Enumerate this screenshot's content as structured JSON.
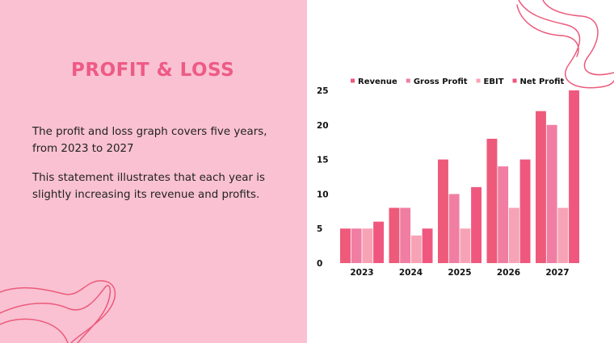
{
  "slide": {
    "title": "PROFIT & LOSS",
    "paragraphs": [
      "The profit and loss graph covers five years, from 2023 to 2027",
      "This statement illustrates that each year is slightly increasing its revenue and profits."
    ]
  },
  "colors": {
    "left_panel": "#f9c1d1",
    "title": "#ee5a86",
    "decor_line": "#ec5a7c"
  },
  "chart_data": {
    "type": "bar",
    "categories": [
      "2023",
      "2024",
      "2025",
      "2026",
      "2027"
    ],
    "series": [
      {
        "name": "Revenue",
        "color": "#ee5a7a",
        "values": [
          5,
          8,
          15,
          18,
          22
        ]
      },
      {
        "name": "Gross Profit",
        "color": "#f07ea3",
        "values": [
          5,
          8,
          10,
          14,
          20
        ]
      },
      {
        "name": "EBIT",
        "color": "#f7a3b6",
        "values": [
          5,
          4,
          5,
          8,
          8
        ]
      },
      {
        "name": "Net Profit",
        "color": "#f0577f",
        "values": [
          6,
          5,
          11,
          15,
          25
        ]
      }
    ],
    "yticks": [
      0,
      5,
      10,
      15,
      20,
      25
    ],
    "ylim": [
      0,
      25
    ],
    "grid": false,
    "legend": "top"
  }
}
